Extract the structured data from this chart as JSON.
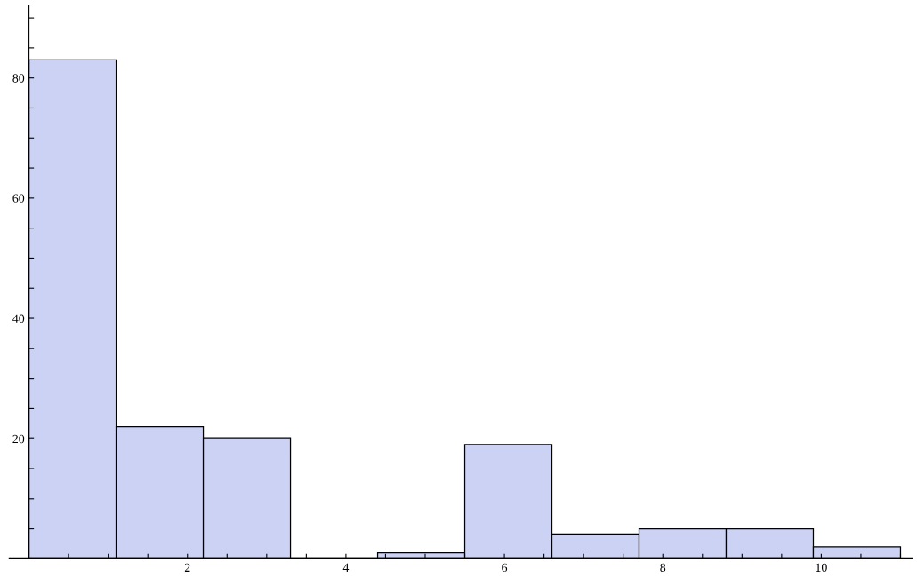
{
  "chart_data": {
    "type": "histogram",
    "color": "#cbd2f4",
    "bins": [
      0,
      1.1,
      2.2,
      3.3,
      4.4,
      5.5,
      6.6,
      7.7,
      8.8,
      9.9,
      11
    ],
    "values": [
      83,
      22,
      20,
      0,
      1,
      19,
      4,
      5,
      5,
      2
    ],
    "xlim": [
      -0.25,
      11.15
    ],
    "ylim": [
      0,
      92
    ],
    "xticks": [
      {
        "value": 0.5,
        "label": null
      },
      {
        "value": 1,
        "label": null
      },
      {
        "value": 1.5,
        "label": null
      },
      2,
      {
        "value": 2.5,
        "label": null
      },
      {
        "value": 3,
        "label": null
      },
      {
        "value": 3.5,
        "label": null
      },
      4,
      {
        "value": 4.5,
        "label": null
      },
      {
        "value": 5,
        "label": null
      },
      {
        "value": 5.5,
        "label": null
      },
      6,
      {
        "value": 6.5,
        "label": null
      },
      {
        "value": 7,
        "label": null
      },
      {
        "value": 7.5,
        "label": null
      },
      8,
      {
        "value": 8.5,
        "label": null
      },
      {
        "value": 9,
        "label": null
      },
      {
        "value": 9.5,
        "label": null
      },
      10,
      {
        "value": 10.5,
        "label": null
      },
      {
        "value": 11,
        "label": null
      }
    ],
    "yticks": [
      {
        "value": 5,
        "label": null
      },
      {
        "value": 10,
        "label": null
      },
      {
        "value": 15,
        "label": null
      },
      20,
      {
        "value": 25,
        "label": null
      },
      {
        "value": 30,
        "label": null
      },
      {
        "value": 35,
        "label": null
      },
      40,
      {
        "value": 45,
        "label": null
      },
      {
        "value": 50,
        "label": null
      },
      {
        "value": 55,
        "label": null
      },
      60,
      {
        "value": 65,
        "label": null
      },
      {
        "value": 70,
        "label": null
      },
      {
        "value": 75,
        "label": null
      },
      80,
      {
        "value": 85,
        "label": null
      },
      {
        "value": 90,
        "label": null
      }
    ],
    "grid": false
  }
}
